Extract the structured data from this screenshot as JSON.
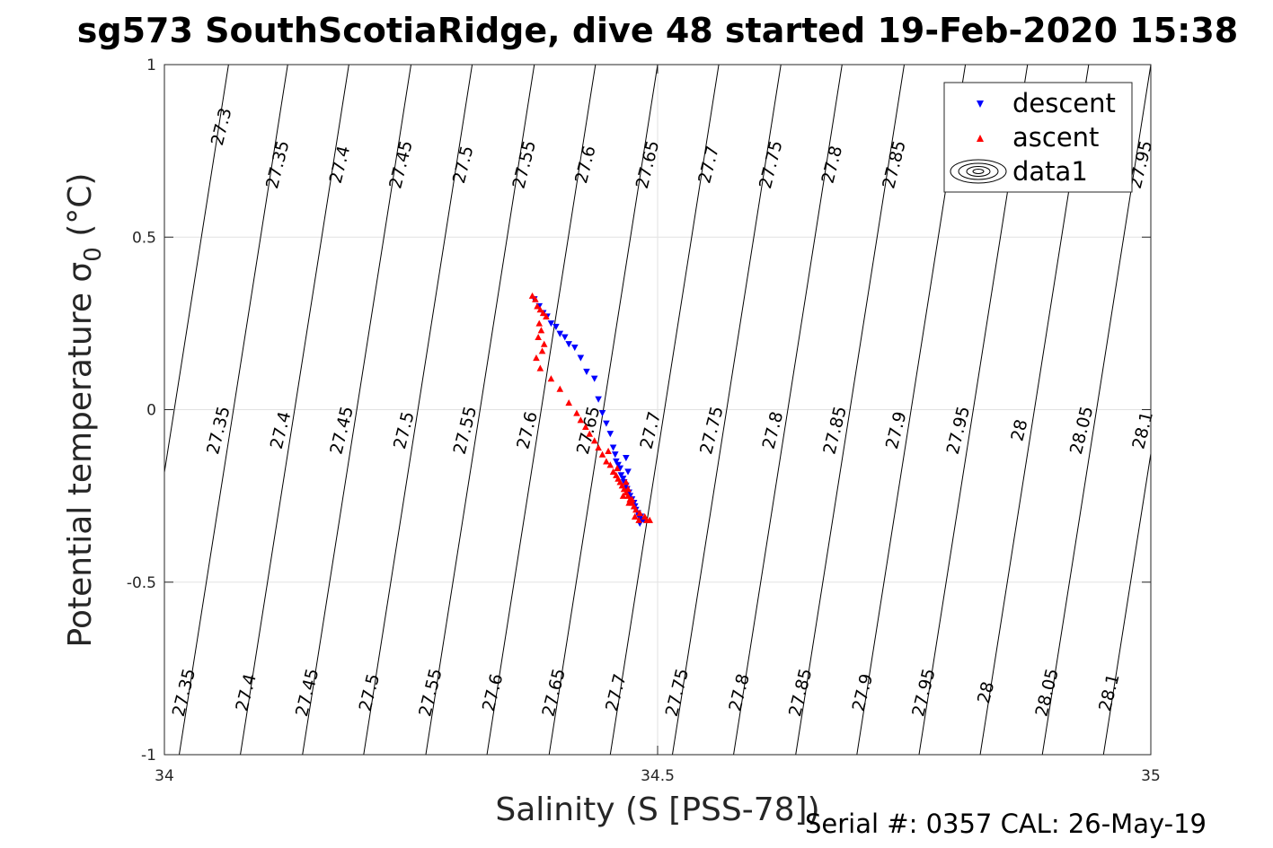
{
  "chart_data": {
    "type": "scatter",
    "title": "sg573 SouthScotiaRidge, dive 48 started 19-Feb-2020 15:38",
    "xlabel": "Salinity (S [PSS-78])",
    "ylabel_main": "Potential temperature σ",
    "ylabel_sub": "0",
    "ylabel_unit": " (°C)",
    "xlim": [
      34,
      35
    ],
    "ylim": [
      -1,
      1
    ],
    "xticks": [
      34,
      34.5,
      35
    ],
    "xtick_labels": [
      "34",
      "34.5",
      "35"
    ],
    "yticks": [
      -1,
      -0.5,
      0,
      0.5,
      1
    ],
    "ytick_labels": [
      "-1",
      "-0.5",
      "0",
      "0.5",
      "1"
    ],
    "grid": true,
    "legend_location": "top-right",
    "legend": [
      {
        "label": "descent",
        "marker": "triangle-down",
        "color": "#0000ff"
      },
      {
        "label": "ascent",
        "marker": "triangle-up",
        "color": "#ff0000"
      },
      {
        "label": "data1",
        "marker": "contour",
        "color": "#000000"
      }
    ],
    "contours": {
      "levels": [
        27.3,
        27.35,
        27.4,
        27.45,
        27.5,
        27.55,
        27.6,
        27.65,
        27.7,
        27.75,
        27.8,
        27.85,
        27.9,
        27.95,
        28.0,
        28.05,
        28.1
      ],
      "labels": [
        {
          "text": "27.3",
          "s": 34.058,
          "t": 0.82
        },
        {
          "text": "27.35",
          "s": 34.115,
          "t": 0.71
        },
        {
          "text": "27.4",
          "s": 34.178,
          "t": 0.71
        },
        {
          "text": "27.45",
          "s": 34.24,
          "t": 0.71
        },
        {
          "text": "27.5",
          "s": 34.303,
          "t": 0.71
        },
        {
          "text": "27.55",
          "s": 34.365,
          "t": 0.71
        },
        {
          "text": "27.6",
          "s": 34.427,
          "t": 0.71
        },
        {
          "text": "27.65",
          "s": 34.49,
          "t": 0.71
        },
        {
          "text": "27.7",
          "s": 34.552,
          "t": 0.71
        },
        {
          "text": "27.75",
          "s": 34.615,
          "t": 0.71
        },
        {
          "text": "27.8",
          "s": 34.677,
          "t": 0.71
        },
        {
          "text": "27.85",
          "s": 34.74,
          "t": 0.71
        },
        {
          "text": "27.95",
          "s": 34.99,
          "t": 0.71
        },
        {
          "text": "27.35",
          "s": 34.055,
          "t": -0.06
        },
        {
          "text": "27.4",
          "s": 34.118,
          "t": -0.06
        },
        {
          "text": "27.45",
          "s": 34.18,
          "t": -0.06
        },
        {
          "text": "27.5",
          "s": 34.243,
          "t": -0.06
        },
        {
          "text": "27.55",
          "s": 34.305,
          "t": -0.06
        },
        {
          "text": "27.6",
          "s": 34.368,
          "t": -0.06
        },
        {
          "text": "27.65",
          "s": 34.43,
          "t": -0.06
        },
        {
          "text": "27.7",
          "s": 34.493,
          "t": -0.06
        },
        {
          "text": "27.75",
          "s": 34.555,
          "t": -0.06
        },
        {
          "text": "27.8",
          "s": 34.617,
          "t": -0.06
        },
        {
          "text": "27.85",
          "s": 34.68,
          "t": -0.06
        },
        {
          "text": "27.9",
          "s": 34.742,
          "t": -0.06
        },
        {
          "text": "27.95",
          "s": 34.805,
          "t": -0.06
        },
        {
          "text": "28",
          "s": 34.867,
          "t": -0.06
        },
        {
          "text": "28.05",
          "s": 34.93,
          "t": -0.06
        },
        {
          "text": "28.1",
          "s": 34.992,
          "t": -0.06
        },
        {
          "text": "27.35",
          "s": 34.02,
          "t": -0.82
        },
        {
          "text": "27.4",
          "s": 34.083,
          "t": -0.82
        },
        {
          "text": "27.45",
          "s": 34.145,
          "t": -0.82
        },
        {
          "text": "27.5",
          "s": 34.208,
          "t": -0.82
        },
        {
          "text": "27.55",
          "s": 34.27,
          "t": -0.82
        },
        {
          "text": "27.6",
          "s": 34.333,
          "t": -0.82
        },
        {
          "text": "27.65",
          "s": 34.395,
          "t": -0.82
        },
        {
          "text": "27.7",
          "s": 34.458,
          "t": -0.82
        },
        {
          "text": "27.75",
          "s": 34.52,
          "t": -0.82
        },
        {
          "text": "27.8",
          "s": 34.583,
          "t": -0.82
        },
        {
          "text": "27.85",
          "s": 34.645,
          "t": -0.82
        },
        {
          "text": "27.9",
          "s": 34.708,
          "t": -0.82
        },
        {
          "text": "27.95",
          "s": 34.77,
          "t": -0.82
        },
        {
          "text": "28",
          "s": 34.833,
          "t": -0.82
        },
        {
          "text": "28.05",
          "s": 34.895,
          "t": -0.82
        },
        {
          "text": "28.1",
          "s": 34.958,
          "t": -0.82
        }
      ]
    },
    "series": [
      {
        "name": "descent",
        "marker": "triangle-down",
        "color": "#0000ff",
        "x": [
          34.375,
          34.38,
          34.384,
          34.388,
          34.392,
          34.397,
          34.401,
          34.406,
          34.41,
          34.416,
          34.422,
          34.428,
          34.436,
          34.44,
          34.444,
          34.448,
          34.452,
          34.455,
          34.457,
          34.458,
          34.46,
          34.462,
          34.463,
          34.465,
          34.466,
          34.468,
          34.469,
          34.471,
          34.472,
          34.474,
          34.475,
          34.477,
          34.478,
          34.48,
          34.481,
          34.483,
          34.484,
          34.486,
          34.47,
          34.468,
          34.476,
          34.482
        ],
        "y": [
          0.32,
          0.3,
          0.28,
          0.27,
          0.25,
          0.24,
          0.22,
          0.21,
          0.19,
          0.18,
          0.15,
          0.11,
          0.09,
          0.03,
          -0.01,
          -0.04,
          -0.07,
          -0.11,
          -0.13,
          -0.15,
          -0.16,
          -0.17,
          -0.19,
          -0.2,
          -0.21,
          -0.22,
          -0.23,
          -0.24,
          -0.25,
          -0.26,
          -0.27,
          -0.28,
          -0.29,
          -0.3,
          -0.31,
          -0.31,
          -0.32,
          -0.32,
          -0.18,
          -0.14,
          -0.27,
          -0.33
        ]
      },
      {
        "name": "ascent",
        "marker": "triangle-up",
        "color": "#ff0000",
        "x": [
          34.373,
          34.376,
          34.378,
          34.381,
          34.384,
          34.387,
          34.38,
          34.382,
          34.379,
          34.385,
          34.383,
          34.377,
          34.381,
          34.392,
          34.401,
          34.41,
          34.418,
          34.422,
          34.427,
          34.431,
          34.436,
          34.44,
          34.444,
          34.448,
          34.452,
          34.455,
          34.458,
          34.46,
          34.462,
          34.464,
          34.466,
          34.468,
          34.47,
          34.472,
          34.474,
          34.476,
          34.478,
          34.482,
          34.487,
          34.492,
          34.465,
          34.471,
          34.477,
          34.47,
          34.468,
          34.474,
          34.481,
          34.489,
          34.459,
          34.45
        ],
        "y": [
          0.33,
          0.32,
          0.3,
          0.29,
          0.28,
          0.27,
          0.25,
          0.23,
          0.21,
          0.19,
          0.17,
          0.15,
          0.12,
          0.09,
          0.06,
          0.02,
          -0.01,
          -0.03,
          -0.05,
          -0.07,
          -0.09,
          -0.11,
          -0.13,
          -0.15,
          -0.16,
          -0.18,
          -0.19,
          -0.2,
          -0.21,
          -0.22,
          -0.23,
          -0.24,
          -0.25,
          -0.26,
          -0.27,
          -0.28,
          -0.29,
          -0.3,
          -0.31,
          -0.32,
          -0.25,
          -0.27,
          -0.31,
          -0.23,
          -0.21,
          -0.26,
          -0.32,
          -0.32,
          -0.17,
          -0.12
        ]
      }
    ]
  },
  "footer": {
    "serial": "Serial #: 0357  CAL: 26-May-19"
  }
}
